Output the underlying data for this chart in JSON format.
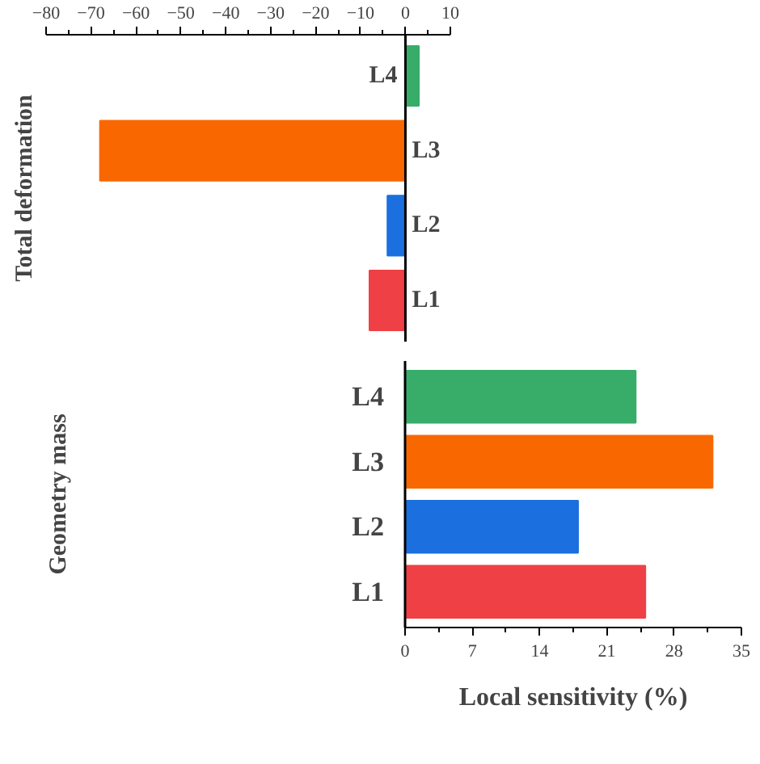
{
  "chart_data": [
    {
      "type": "bar",
      "orientation": "horizontal",
      "ylabel": "Total deformation",
      "categories": [
        "L4",
        "L3",
        "L2",
        "L1"
      ],
      "values": [
        3,
        -68,
        -4,
        -8
      ],
      "colors": [
        "#38ad6a",
        "#f96800",
        "#1b6fde",
        "#ef4045"
      ],
      "xlim": [
        -80,
        10
      ],
      "xticks": [
        -80,
        -70,
        -60,
        -50,
        -40,
        -30,
        -20,
        -10,
        0,
        10
      ]
    },
    {
      "type": "bar",
      "orientation": "horizontal",
      "xlabel": "Local sensitivity (%)",
      "ylabel": "Geometry mass",
      "categories": [
        "L4",
        "L3",
        "L2",
        "L1"
      ],
      "values": [
        24,
        32,
        18,
        25
      ],
      "colors": [
        "#38ad6a",
        "#f96800",
        "#1b6fde",
        "#ef4045"
      ],
      "xlim": [
        0,
        35
      ],
      "xticks": [
        0,
        7,
        14,
        21,
        28,
        35
      ]
    }
  ]
}
